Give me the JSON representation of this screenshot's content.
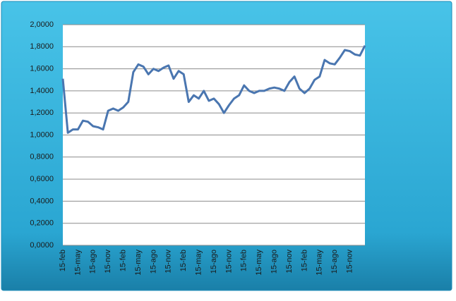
{
  "chart_data": {
    "type": "line",
    "categories": [
      "15-feb",
      null,
      null,
      "15-may",
      null,
      null,
      "15-ago",
      null,
      null,
      "15-nov",
      null,
      null,
      "15-feb",
      null,
      null,
      "15-may",
      null,
      null,
      "15-ago",
      null,
      null,
      "15-nov",
      null,
      null,
      "15-feb",
      null,
      null,
      "15-may",
      null,
      null,
      "15-ago",
      null,
      null,
      "15-nov",
      null,
      null,
      "15-feb",
      null,
      null,
      "15-may",
      null,
      null,
      "15-ago",
      null,
      null,
      "15-nov",
      null,
      null,
      "15-feb",
      null,
      null,
      "15-may",
      null,
      null,
      "15-ago",
      null,
      null,
      "15-nov",
      null,
      null,
      null
    ],
    "series": [
      {
        "color": "#4a76b0",
        "values": [
          1.51,
          1.02,
          1.05,
          1.05,
          1.13,
          1.12,
          1.08,
          1.07,
          1.05,
          1.22,
          1.24,
          1.22,
          1.25,
          1.3,
          1.57,
          1.64,
          1.62,
          1.55,
          1.6,
          1.58,
          1.61,
          1.63,
          1.51,
          1.58,
          1.55,
          1.3,
          1.36,
          1.33,
          1.4,
          1.31,
          1.33,
          1.28,
          1.2,
          1.27,
          1.33,
          1.36,
          1.45,
          1.4,
          1.38,
          1.4,
          1.4,
          1.42,
          1.43,
          1.42,
          1.4,
          1.48,
          1.53,
          1.42,
          1.38,
          1.42,
          1.5,
          1.53,
          1.68,
          1.65,
          1.64,
          1.7,
          1.77,
          1.76,
          1.73,
          1.72,
          1.81
        ]
      }
    ],
    "ylim": [
      0,
      2
    ],
    "yticks": [
      {
        "value": 0,
        "label": "0,0000"
      },
      {
        "value": 0.2,
        "label": "0,2000"
      },
      {
        "value": 0.4,
        "label": "0,4000"
      },
      {
        "value": 0.6,
        "label": "0,6000"
      },
      {
        "value": 0.8,
        "label": "0,8000"
      },
      {
        "value": 1,
        "label": "1,0000"
      },
      {
        "value": 1.2,
        "label": "1,2000"
      },
      {
        "value": 1.4,
        "label": "1,4000"
      },
      {
        "value": 1.6,
        "label": "1,6000"
      },
      {
        "value": 1.8,
        "label": "1,8000"
      },
      {
        "value": 2,
        "label": "2,0000"
      }
    ],
    "grid": true
  }
}
